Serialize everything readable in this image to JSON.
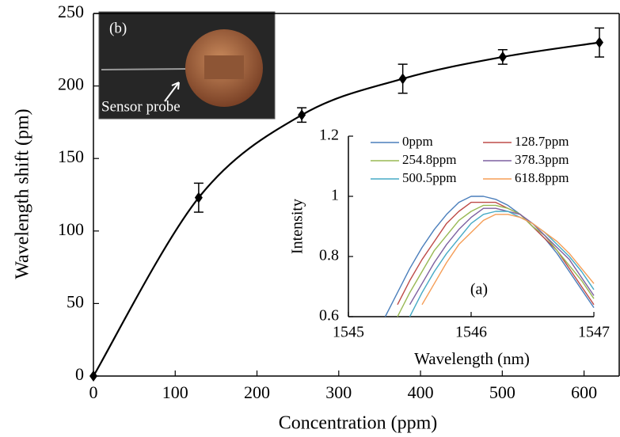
{
  "chart_data": [
    {
      "type": "scatter",
      "x_label": "Concentration (ppm)",
      "y_label": "Wavelength shift (pm)",
      "annotations": [
        "(b)",
        "Sensor probe"
      ],
      "series": [
        {
          "color": "#000000",
          "x": [
            0,
            128.7,
            254.8,
            378.3,
            500.5,
            618.8
          ],
          "values": [
            0,
            123,
            180,
            205,
            220,
            230
          ],
          "errors": [
            null,
            10,
            5,
            10,
            5,
            10
          ]
        }
      ],
      "xlim": [
        0,
        643
      ],
      "xticks": [
        0,
        100,
        200,
        300,
        400,
        500,
        600
      ],
      "ylim": [
        0,
        250
      ],
      "yticks": [
        0,
        50,
        100,
        150,
        200,
        250
      ],
      "grid": false
    },
    {
      "type": "line",
      "x_label": "Wavelength (nm)",
      "y_label": "Intensity",
      "annotations": [
        "(a)"
      ],
      "x": [
        1545.3,
        1545.4,
        1545.5,
        1545.6,
        1545.7,
        1545.8,
        1545.9,
        1546.0,
        1546.1,
        1546.2,
        1546.3,
        1546.4,
        1546.5,
        1546.6,
        1546.7,
        1546.8,
        1546.9,
        1547.0
      ],
      "series": [
        {
          "name": "0ppm",
          "color": "#4a7ebb",
          "values": [
            0.6,
            0.68,
            0.76,
            0.83,
            0.89,
            0.94,
            0.98,
            1.0,
            1.0,
            0.99,
            0.97,
            0.94,
            0.9,
            0.86,
            0.81,
            0.75,
            0.69,
            0.63
          ]
        },
        {
          "name": "128.7ppm",
          "color": "#be4b48",
          "values": [
            null,
            0.64,
            0.72,
            0.79,
            0.85,
            0.91,
            0.95,
            0.98,
            0.98,
            0.98,
            0.96,
            0.94,
            0.9,
            0.86,
            0.82,
            0.76,
            0.7,
            0.64
          ]
        },
        {
          "name": "254.8ppm",
          "color": "#98b954",
          "values": [
            null,
            0.6,
            0.68,
            0.75,
            0.82,
            0.87,
            0.92,
            0.95,
            0.97,
            0.97,
            0.96,
            0.94,
            0.9,
            0.87,
            0.82,
            0.77,
            0.72,
            0.66
          ]
        },
        {
          "name": "378.3ppm",
          "color": "#7d60a0",
          "values": [
            null,
            null,
            0.64,
            0.71,
            0.78,
            0.84,
            0.89,
            0.93,
            0.96,
            0.96,
            0.95,
            0.94,
            0.91,
            0.87,
            0.83,
            0.79,
            0.73,
            0.67
          ]
        },
        {
          "name": "500.5ppm",
          "color": "#46aac5",
          "values": [
            null,
            null,
            0.6,
            0.68,
            0.75,
            0.81,
            0.86,
            0.91,
            0.94,
            0.95,
            0.95,
            0.93,
            0.91,
            0.88,
            0.84,
            0.8,
            0.75,
            0.69
          ]
        },
        {
          "name": "618.8ppm",
          "color": "#f59d56",
          "values": [
            null,
            null,
            null,
            0.64,
            0.71,
            0.78,
            0.84,
            0.88,
            0.92,
            0.94,
            0.94,
            0.93,
            0.91,
            0.88,
            0.85,
            0.81,
            0.76,
            0.71
          ]
        }
      ],
      "xlim": [
        1545,
        1547
      ],
      "xticks": [
        1545,
        1546,
        1547
      ],
      "ylim": [
        0.6,
        1.2
      ],
      "yticks": [
        0.6,
        0.8,
        1,
        1.2
      ],
      "legend": "upper",
      "grid": false
    }
  ]
}
